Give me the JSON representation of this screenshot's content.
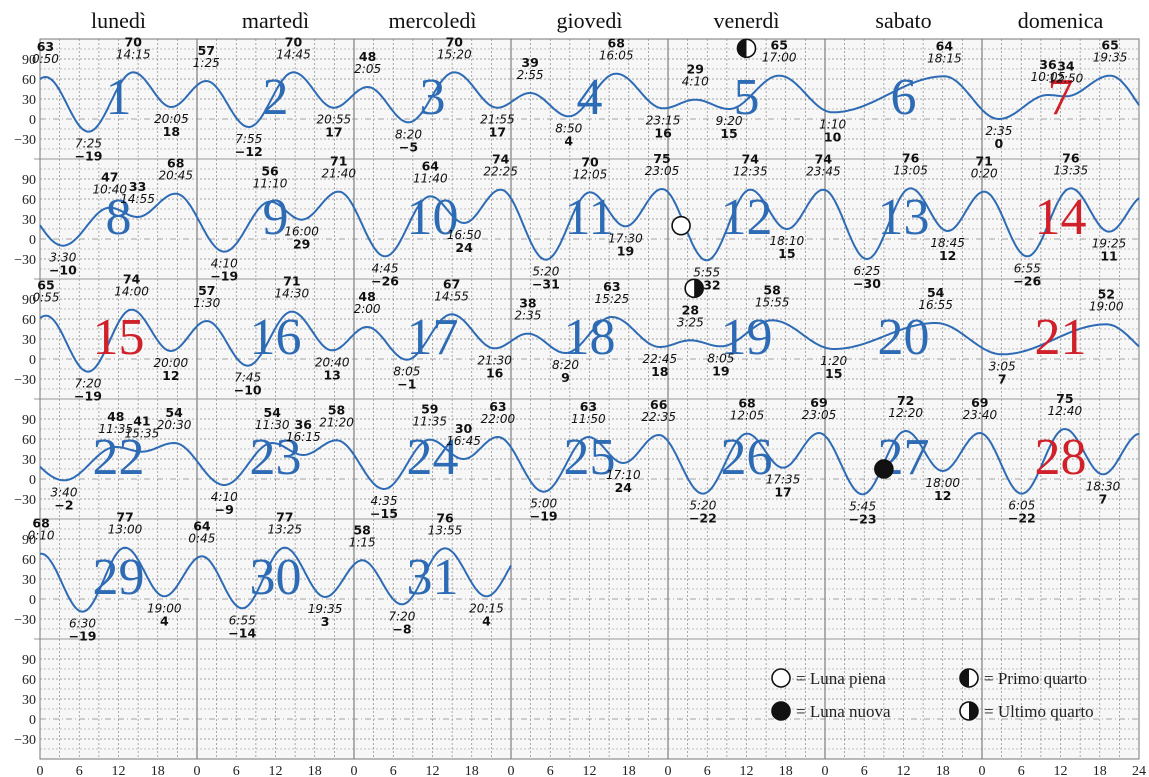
{
  "chart_data": {
    "type": "line",
    "weekdays": [
      "lunedì",
      "martedì",
      "mercoledì",
      "giovedì",
      "venerdì",
      "sabato",
      "domenica"
    ],
    "yticks": [
      90,
      60,
      30,
      0,
      -30
    ],
    "xticks": [
      "0",
      "6",
      "12",
      "18",
      "0",
      "6",
      "12",
      "18",
      "0",
      "6",
      "12",
      "18",
      "0",
      "6",
      "12",
      "18",
      "0",
      "6",
      "12",
      "18",
      "0",
      "6",
      "12",
      "18",
      "0",
      "6",
      "12",
      "18",
      "24"
    ],
    "ylim": [
      -60,
      120
    ],
    "grid": true,
    "colors": {
      "curve": "#2e6bb5",
      "daynum": "#2e6bb5",
      "holiday": "#d0202a",
      "grid": "#888888"
    },
    "first_weekday_index": 0,
    "holidays": [
      7,
      14,
      15,
      21,
      28
    ],
    "days_in_month": 31,
    "tides": [
      {
        "time": "0:50",
        "value": "63"
      },
      {
        "time": "7:25",
        "value": "-19"
      },
      {
        "time": "14:15",
        "value": "70"
      },
      {
        "time": "20:05",
        "value": "18"
      },
      {
        "time": "1:25",
        "value": "57"
      },
      {
        "time": "7:55",
        "value": "-12"
      },
      {
        "time": "14:45",
        "value": "70"
      },
      {
        "time": "20:55",
        "value": "17"
      },
      {
        "time": "2:05",
        "value": "48"
      },
      {
        "time": "8:20",
        "value": "-5"
      },
      {
        "time": "15:20",
        "value": "70"
      },
      {
        "time": "21:55",
        "value": "17"
      },
      {
        "time": "2:55",
        "value": "39"
      },
      {
        "time": "8:50",
        "value": "4"
      },
      {
        "time": "16:05",
        "value": "68"
      },
      {
        "time": "23:15",
        "value": "16"
      },
      {
        "time": "4:10",
        "value": "29"
      },
      {
        "time": "9:20",
        "value": "15"
      },
      {
        "time": "17:00",
        "value": "65"
      },
      {
        "time": "1:10",
        "value": "10"
      },
      {
        "time": "18:15",
        "value": "64"
      },
      {
        "time": "2:35",
        "value": "0"
      },
      {
        "time": "10:05",
        "value": "36"
      },
      {
        "time": "12:50",
        "value": "34"
      },
      {
        "time": "19:35",
        "value": "65"
      },
      {
        "time": "3:30",
        "value": "-10"
      },
      {
        "time": "10:40",
        "value": "47"
      },
      {
        "time": "14:55",
        "value": "33"
      },
      {
        "time": "20:45",
        "value": "68"
      },
      {
        "time": "4:10",
        "value": "-19"
      },
      {
        "time": "11:10",
        "value": "56"
      },
      {
        "time": "16:00",
        "value": "29"
      },
      {
        "time": "21:40",
        "value": "71"
      },
      {
        "time": "4:45",
        "value": "-26"
      },
      {
        "time": "11:40",
        "value": "64"
      },
      {
        "time": "16:50",
        "value": "24"
      },
      {
        "time": "22:25",
        "value": "74"
      },
      {
        "time": "5:20",
        "value": "-31"
      },
      {
        "time": "12:05",
        "value": "70"
      },
      {
        "time": "17:30",
        "value": "19"
      },
      {
        "time": "23:05",
        "value": "75"
      },
      {
        "time": "5:55",
        "value": "-32"
      },
      {
        "time": "12:35",
        "value": "74"
      },
      {
        "time": "18:10",
        "value": "15"
      },
      {
        "time": "23:45",
        "value": "74"
      },
      {
        "time": "6:25",
        "value": "-30"
      },
      {
        "time": "13:05",
        "value": "76"
      },
      {
        "time": "18:45",
        "value": "12"
      },
      {
        "time": "0:20",
        "value": "71"
      },
      {
        "time": "6:55",
        "value": "-26"
      },
      {
        "time": "13:35",
        "value": "76"
      },
      {
        "time": "19:25",
        "value": "11"
      },
      {
        "time": "0:55",
        "value": "65"
      },
      {
        "time": "7:20",
        "value": "-19"
      },
      {
        "time": "14:00",
        "value": "74"
      },
      {
        "time": "20:00",
        "value": "12"
      },
      {
        "time": "1:30",
        "value": "57"
      },
      {
        "time": "7:45",
        "value": "-10"
      },
      {
        "time": "14:30",
        "value": "71"
      },
      {
        "time": "20:40",
        "value": "13"
      },
      {
        "time": "2:00",
        "value": "48"
      },
      {
        "time": "8:05",
        "value": "-1"
      },
      {
        "time": "14:55",
        "value": "67"
      },
      {
        "time": "21:30",
        "value": "16"
      },
      {
        "time": "2:35",
        "value": "38"
      },
      {
        "time": "8:20",
        "value": "9"
      },
      {
        "time": "15:25",
        "value": "63"
      },
      {
        "time": "22:45",
        "value": "18"
      },
      {
        "time": "3:25",
        "value": "28"
      },
      {
        "time": "8:05",
        "value": "19"
      },
      {
        "time": "15:55",
        "value": "58"
      },
      {
        "time": "1:20",
        "value": "15"
      },
      {
        "time": "16:55",
        "value": "54"
      },
      {
        "time": "3:05",
        "value": "7"
      },
      {
        "time": "19:00",
        "value": "52"
      },
      {
        "time": "3:40",
        "value": "-2"
      },
      {
        "time": "11:35",
        "value": "48"
      },
      {
        "time": "15:35",
        "value": "41"
      },
      {
        "time": "20:30",
        "value": "54"
      },
      {
        "time": "4:10",
        "value": "-9"
      },
      {
        "time": "11:30",
        "value": "54"
      },
      {
        "time": "16:15",
        "value": "36"
      },
      {
        "time": "21:20",
        "value": "58"
      },
      {
        "time": "4:35",
        "value": "-15"
      },
      {
        "time": "11:35",
        "value": "59"
      },
      {
        "time": "16:45",
        "value": "30"
      },
      {
        "time": "22:00",
        "value": "63"
      },
      {
        "time": "5:00",
        "value": "-19"
      },
      {
        "time": "11:50",
        "value": "63"
      },
      {
        "time": "17:10",
        "value": "24"
      },
      {
        "time": "22:35",
        "value": "66"
      },
      {
        "time": "5:20",
        "value": "-22"
      },
      {
        "time": "12:05",
        "value": "68"
      },
      {
        "time": "17:35",
        "value": "17"
      },
      {
        "time": "23:05",
        "value": "69"
      },
      {
        "time": "5:45",
        "value": "-23"
      },
      {
        "time": "12:20",
        "value": "72"
      },
      {
        "time": "18:00",
        "value": "12"
      },
      {
        "time": "23:40",
        "value": "69"
      },
      {
        "time": "6:05",
        "value": "-22"
      },
      {
        "time": "12:40",
        "value": "75"
      },
      {
        "time": "18:30",
        "value": "7"
      },
      {
        "time": "0:10",
        "value": "68"
      },
      {
        "time": "6:30",
        "value": "-19"
      },
      {
        "time": "13:00",
        "value": "77"
      },
      {
        "time": "19:00",
        "value": "4"
      },
      {
        "time": "0:45",
        "value": "64"
      },
      {
        "time": "6:55",
        "value": "-14"
      },
      {
        "time": "13:25",
        "value": "77"
      },
      {
        "time": "19:35",
        "value": "3"
      },
      {
        "time": "1:15",
        "value": "58"
      },
      {
        "time": "7:20",
        "value": "-8"
      },
      {
        "time": "13:55",
        "value": "76"
      },
      {
        "time": "20:15",
        "value": "4"
      }
    ],
    "tide_days": [
      1,
      1,
      1,
      1,
      2,
      2,
      2,
      2,
      3,
      3,
      3,
      3,
      4,
      4,
      4,
      4,
      5,
      5,
      5,
      6,
      6,
      7,
      7,
      7,
      7,
      8,
      8,
      8,
      8,
      9,
      9,
      9,
      9,
      10,
      10,
      10,
      10,
      11,
      11,
      11,
      11,
      12,
      12,
      12,
      12,
      13,
      13,
      13,
      14,
      14,
      14,
      14,
      15,
      15,
      15,
      15,
      16,
      16,
      16,
      16,
      17,
      17,
      17,
      17,
      18,
      18,
      18,
      18,
      19,
      19,
      19,
      20,
      20,
      21,
      21,
      22,
      22,
      22,
      22,
      23,
      23,
      23,
      23,
      24,
      24,
      24,
      24,
      25,
      25,
      25,
      25,
      26,
      26,
      26,
      26,
      27,
      27,
      27,
      27,
      28,
      28,
      28,
      29,
      29,
      29,
      29,
      30,
      30,
      30,
      30,
      31,
      31,
      31,
      31
    ],
    "moon_phases": [
      {
        "day": 5,
        "hour": 12,
        "phase": "primo_quarto"
      },
      {
        "day": 11,
        "hour": 26,
        "phase": "piena"
      },
      {
        "day": 18,
        "hour": 28,
        "phase": "ultimo_quarto"
      },
      {
        "day": 27,
        "hour": 9,
        "phase": "nuova"
      }
    ],
    "legend": {
      "full": "= Luna piena",
      "first_quarter": "= Primo quarto",
      "new": "= Luna nuova",
      "last_quarter": "= Ultimo quarto"
    }
  }
}
